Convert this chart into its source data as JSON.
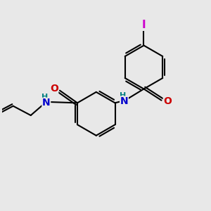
{
  "bg_color": "#e8e8e8",
  "bond_color": "#000000",
  "bond_width": 1.5,
  "N_color": "#0000cc",
  "O_color": "#cc0000",
  "I_color": "#cc00cc",
  "NH_color": "#008080",
  "figsize": [
    3.0,
    3.0
  ],
  "dpi": 100,
  "xlim": [
    0,
    10
  ],
  "ylim": [
    0,
    10
  ]
}
